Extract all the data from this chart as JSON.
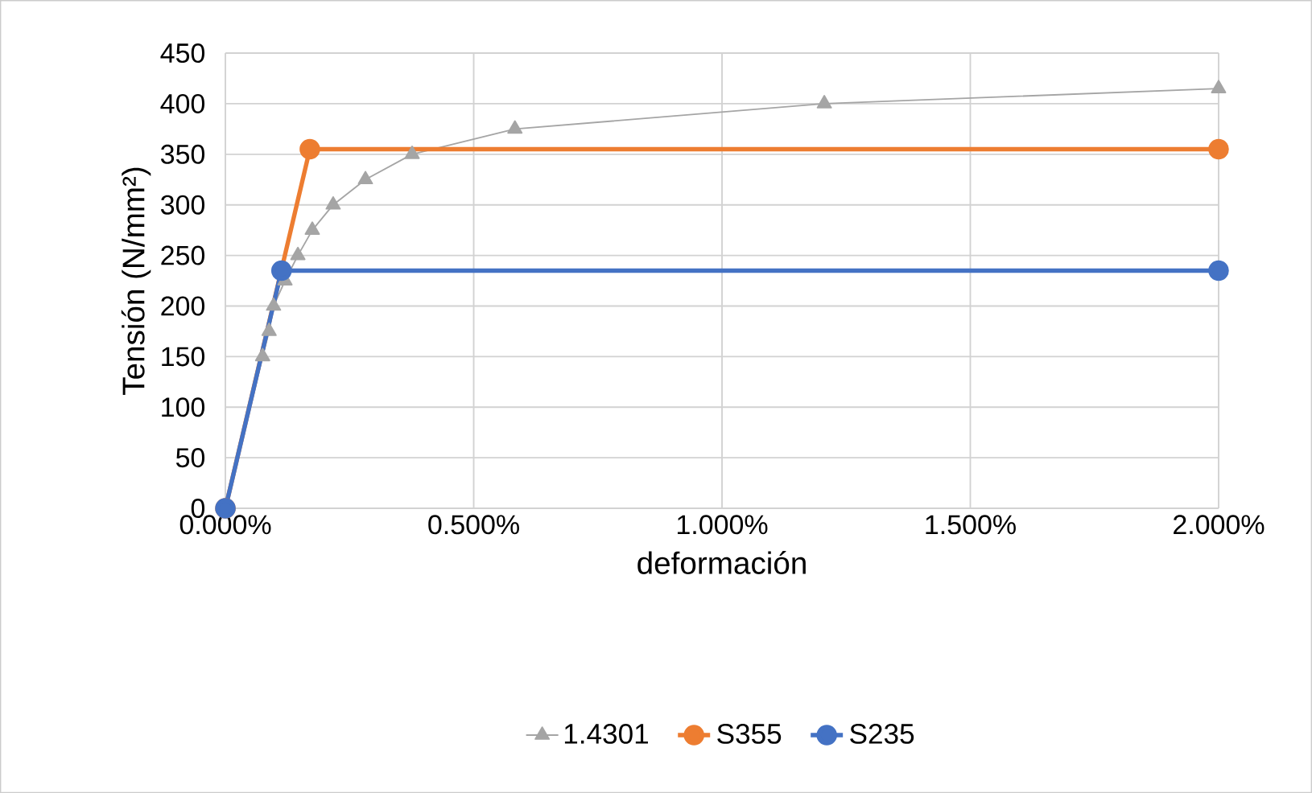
{
  "chart_data": {
    "type": "line",
    "xlabel": "deformación",
    "ylabel": "Tensión (N/mm²)",
    "xlim": [
      0,
      0.02
    ],
    "ylim": [
      0,
      450
    ],
    "xticks": [
      {
        "value": 0,
        "label": "0.000%"
      },
      {
        "value": 0.005,
        "label": "0.500%"
      },
      {
        "value": 0.01,
        "label": "1.000%"
      },
      {
        "value": 0.015,
        "label": "1.500%"
      },
      {
        "value": 0.02,
        "label": "2.000%"
      }
    ],
    "yticks": [
      0,
      50,
      100,
      150,
      200,
      250,
      300,
      350,
      400,
      450
    ],
    "grid": true,
    "legend": "bottom",
    "series": [
      {
        "name": "1.4301",
        "color": "#a5a5a5",
        "marker": "triangle",
        "x": [
          0,
          0.00075,
          0.00088,
          0.00097,
          0.0012,
          0.00146,
          0.00175,
          0.00217,
          0.00282,
          0.00376,
          0.00583,
          0.01206,
          0.02
        ],
        "values": [
          0,
          150,
          175,
          200,
          225,
          250,
          275,
          300,
          325,
          350,
          375,
          400,
          415
        ]
      },
      {
        "name": "S355",
        "color": "#ed7d31",
        "marker": "circle",
        "x": [
          0,
          0.0017,
          0.02
        ],
        "values": [
          0,
          355,
          355
        ]
      },
      {
        "name": "S235",
        "color": "#4472c4",
        "marker": "circle",
        "x": [
          0,
          0.00113,
          0.02
        ],
        "values": [
          0,
          235,
          235
        ]
      }
    ]
  }
}
